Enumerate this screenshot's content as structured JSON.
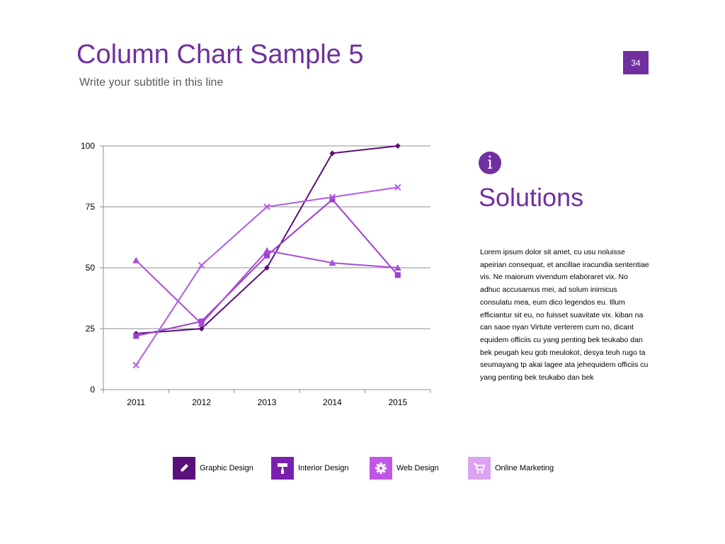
{
  "slide": {
    "title": "Column Chart Sample 5",
    "subtitle": "Write your subtitle in this line",
    "page_number": "34"
  },
  "side_panel": {
    "icon": "info-icon",
    "heading": "Solutions",
    "body": "Lorem ipsum dolor sit amet, cu usu noluisse apeirian consequat, et ancillae iracundia sententiae vis. Ne maiorum vivendum elaboraret vix. No adhuc accusamus mei, ad solum inimicus consulatu mea, eum dico legendos eu. Illum efficiantur sit eu, no fuisset suavitate vix. kiban na can saoe nyan Virtute verterem cum no, dicant equidem officiis cu yang penting bek teukabo dan bek peugah keu gob meulokot, desya teuh rugo ta seumayang tp akai lagee ata jehequidem officiis cu yang penting bek teukabo dan bek"
  },
  "legend": [
    {
      "label": "Graphic Design",
      "icon": "pencil-icon",
      "color": "#5b0f7a"
    },
    {
      "label": "Interior Design",
      "icon": "paint-roller-icon",
      "color": "#7a1fb0"
    },
    {
      "label": "Web Design",
      "icon": "gear-icon",
      "color": "#c056e8"
    },
    {
      "label": "Online Marketing",
      "icon": "shopping-cart-icon",
      "color": "#dba3f0"
    }
  ],
  "chart_data": {
    "type": "line",
    "categories": [
      "2011",
      "2012",
      "2013",
      "2014",
      "2015"
    ],
    "ylim": [
      0,
      100
    ],
    "yticks": [
      0,
      25,
      50,
      75,
      100
    ],
    "grid": true,
    "series": [
      {
        "name": "Graphic Design",
        "marker": "diamond",
        "color": "#5b0f7a",
        "values": [
          23,
          25,
          50,
          97,
          100
        ]
      },
      {
        "name": "Interior Design",
        "marker": "square",
        "color": "#9b3fd0",
        "values": [
          22,
          28,
          55,
          78,
          47
        ]
      },
      {
        "name": "Web Design",
        "marker": "triangle",
        "color": "#a64fd6",
        "values": [
          53,
          27,
          57,
          52,
          50
        ]
      },
      {
        "name": "Online Marketing",
        "marker": "x",
        "color": "#b05ce0",
        "values": [
          10,
          51,
          75,
          79,
          83
        ]
      }
    ]
  }
}
